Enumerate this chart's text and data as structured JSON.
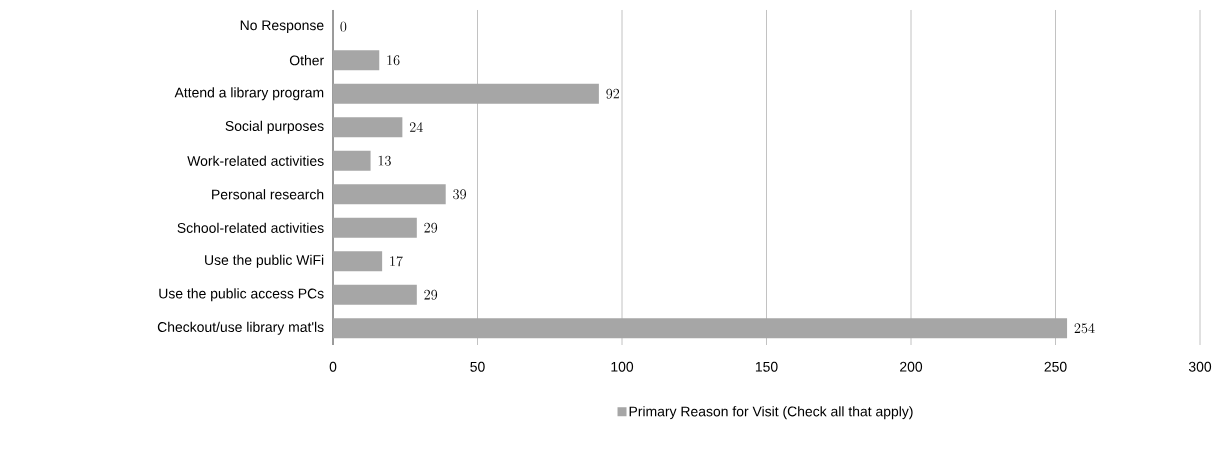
{
  "chart_data": {
    "type": "bar",
    "orientation": "horizontal",
    "categories": [
      "No Response",
      "Other",
      "Attend a library program",
      "Social purposes",
      "Work-related activities",
      "Personal research",
      "School-related activities",
      "Use the public WiFi",
      "Use the public access PCs",
      "Checkout/use library mat'ls"
    ],
    "series": [
      {
        "name": "Primary Reason for Visit (Check all that apply)",
        "color": "#a6a6a6",
        "values": [
          0,
          16,
          92,
          24,
          13,
          39,
          29,
          17,
          29,
          254
        ]
      }
    ],
    "xlim": [
      0,
      300
    ],
    "xticks": [
      0,
      50,
      100,
      150,
      200,
      250,
      300
    ],
    "grid": "x",
    "legend": "bottom",
    "data_labels": true
  }
}
